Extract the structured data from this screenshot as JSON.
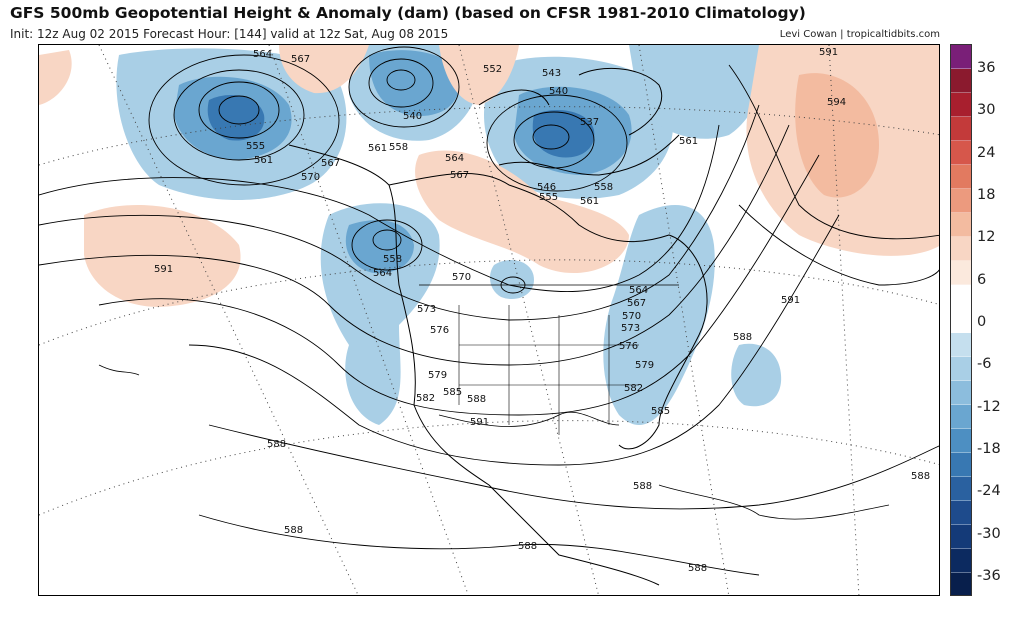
{
  "header": {
    "title": "GFS 500mb Geopotential Height & Anomaly (dam) (based on CFSR 1981-2010 Climatology)",
    "subtitle": "Init: 12z Aug 02 2015   Forecast Hour: [144]   valid at 12z Sat, Aug 08 2015",
    "credit": "Levi Cowan | tropicaltidbits.com"
  },
  "colorbar": {
    "labels": [
      "36",
      "30",
      "24",
      "18",
      "12",
      "6",
      "0",
      "-6",
      "-12",
      "-18",
      "-24",
      "-30",
      "-36"
    ],
    "colors": [
      "#7a1f78",
      "#8b1a2e",
      "#a81f2e",
      "#c33a3a",
      "#d6574b",
      "#e27a60",
      "#ec9a7e",
      "#f3bba0",
      "#f8d6c4",
      "#fbe9dd",
      "#ffffff",
      "#ffffff",
      "#c5dfee",
      "#a9cfe6",
      "#8cbddd",
      "#6aa6d0",
      "#4d8fc2",
      "#3878b2",
      "#2a61a0",
      "#1e4b8c",
      "#143a78",
      "#0c2a60",
      "#081f4c"
    ]
  },
  "contour_labels": [
    {
      "text": "564"
    },
    {
      "text": "567"
    },
    {
      "text": "555"
    },
    {
      "text": "561"
    },
    {
      "text": "570"
    },
    {
      "text": "567"
    },
    {
      "text": "540"
    },
    {
      "text": "561"
    },
    {
      "text": "558"
    },
    {
      "text": "552"
    },
    {
      "text": "543"
    },
    {
      "text": "540"
    },
    {
      "text": "537"
    },
    {
      "text": "564"
    },
    {
      "text": "567"
    },
    {
      "text": "546"
    },
    {
      "text": "555"
    },
    {
      "text": "558"
    },
    {
      "text": "561"
    },
    {
      "text": "561"
    },
    {
      "text": "591"
    },
    {
      "text": "594"
    },
    {
      "text": "591"
    },
    {
      "text": "558"
    },
    {
      "text": "564"
    },
    {
      "text": "570"
    },
    {
      "text": "573"
    },
    {
      "text": "576"
    },
    {
      "text": "579"
    },
    {
      "text": "582"
    },
    {
      "text": "585"
    },
    {
      "text": "588"
    },
    {
      "text": "591"
    },
    {
      "text": "564"
    },
    {
      "text": "567"
    },
    {
      "text": "570"
    },
    {
      "text": "573"
    },
    {
      "text": "576"
    },
    {
      "text": "579"
    },
    {
      "text": "582"
    },
    {
      "text": "585"
    },
    {
      "text": "588"
    },
    {
      "text": "591"
    },
    {
      "text": "588"
    },
    {
      "text": "588"
    },
    {
      "text": "588"
    },
    {
      "text": "588"
    },
    {
      "text": "588"
    },
    {
      "text": "588"
    }
  ]
}
